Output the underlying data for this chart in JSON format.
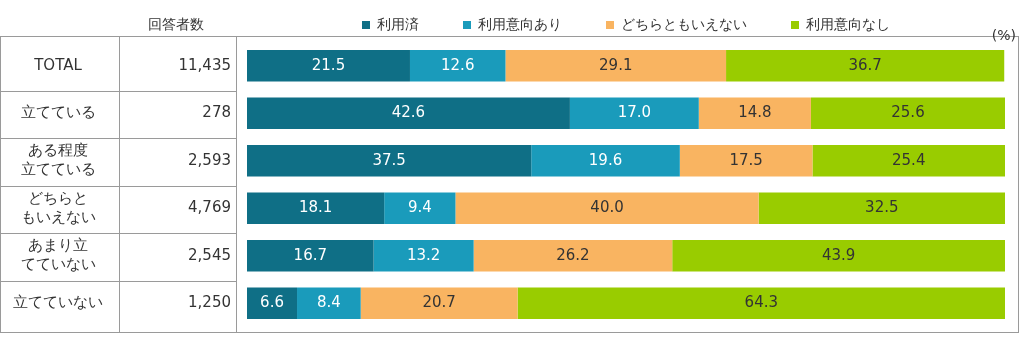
{
  "chart_data": {
    "type": "bar",
    "orientation": "horizontal",
    "stacked": true,
    "categories": [
      "TOTAL",
      "立てている",
      "ある程度立てている",
      "どちらともいえない",
      "あまり立てていない",
      "立てていない"
    ],
    "series": [
      {
        "name": "利用済",
        "color": "#0f6f86",
        "values": [
          21.5,
          42.6,
          37.5,
          18.1,
          16.7,
          6.6
        ],
        "value_labels": [
          "21.5",
          "42.6",
          "37.5",
          "18.1",
          "16.7",
          "6.6"
        ]
      },
      {
        "name": "利用意向あり",
        "color": "#1a9bbb",
        "values": [
          12.6,
          17.0,
          19.6,
          9.4,
          13.2,
          8.4
        ],
        "value_labels": [
          "12.6",
          "17.0",
          "19.6",
          "9.4",
          "13.2",
          "8.4"
        ]
      },
      {
        "name": "どちらともいえない",
        "color": "#f9b461",
        "values": [
          29.1,
          14.8,
          17.5,
          40.0,
          26.2,
          20.7
        ],
        "value_labels": [
          "29.1",
          "14.8",
          "17.5",
          "40.0",
          "26.2",
          "20.7"
        ]
      },
      {
        "name": "利用意向なし",
        "color": "#99cc00",
        "values": [
          36.7,
          25.6,
          25.4,
          32.5,
          43.9,
          64.3
        ],
        "value_labels": [
          "36.7",
          "25.6",
          "25.4",
          "32.5",
          "43.9",
          "64.3"
        ]
      }
    ],
    "xlim": [
      0,
      100
    ],
    "legend": "top",
    "annotations": [
      "回答者数",
      "(%)",
      "11,435",
      "278",
      "2,593",
      "4,769",
      "2,545",
      "1,250"
    ]
  }
}
